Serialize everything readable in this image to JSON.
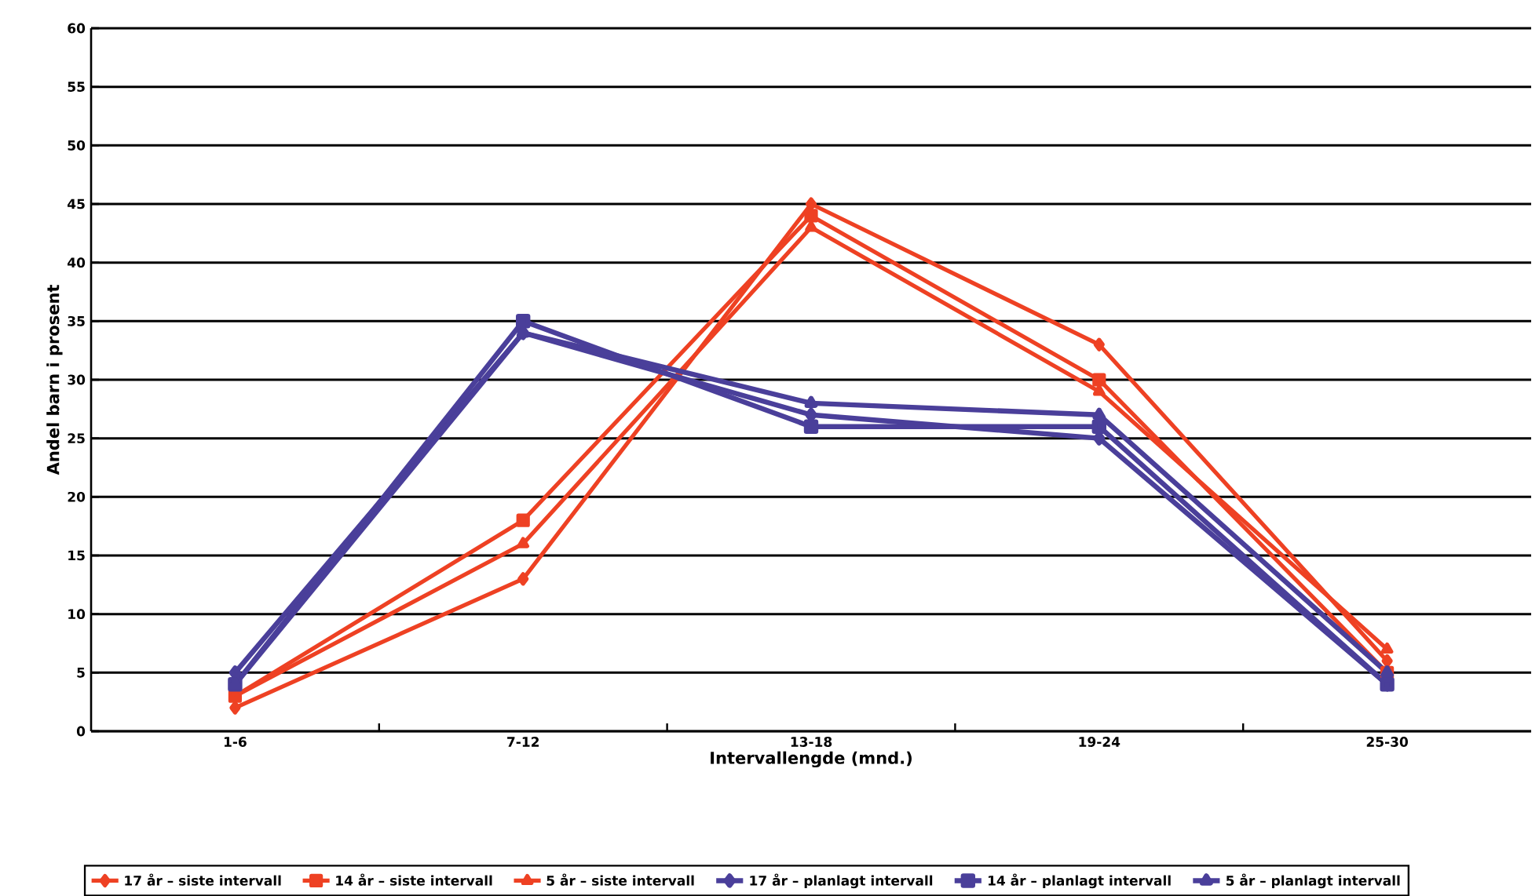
{
  "chart_data": {
    "type": "line",
    "xlabel": "Intervallengde (mnd.)",
    "ylabel": "Andel barn i prosent",
    "categories": [
      "1-6",
      "7-12",
      "13-18",
      "19-24",
      "25-30"
    ],
    "series": [
      {
        "name": "17 år – siste  intervall",
        "color": "#ee4123",
        "marker": "diamond",
        "values": [
          2,
          13,
          45,
          33,
          6
        ]
      },
      {
        "name": "14 år – siste  intervall",
        "color": "#ee4123",
        "marker": "square",
        "values": [
          3,
          18,
          44,
          30,
          5
        ]
      },
      {
        "name": "5 år – siste  intervall",
        "color": "#ee4123",
        "marker": "triangle",
        "values": [
          3,
          16,
          43,
          29,
          7
        ]
      },
      {
        "name": "17 år – planlagt  intervall",
        "color": "#4a3f9a",
        "marker": "diamond",
        "values": [
          5,
          34,
          27,
          25,
          4
        ]
      },
      {
        "name": "14 år – planlagt  intervall",
        "color": "#4a3f9a",
        "marker": "square",
        "values": [
          4,
          35,
          26,
          26,
          4
        ]
      },
      {
        "name": "5 år – planlagt  intervall",
        "color": "#4a3f9a",
        "marker": "triangle",
        "values": [
          4,
          34,
          28,
          27,
          5
        ]
      }
    ],
    "ylim": [
      0,
      60
    ],
    "yticks": [
      0,
      5,
      10,
      15,
      20,
      25,
      30,
      35,
      40,
      45,
      50,
      55,
      60
    ],
    "grid": "y",
    "legend": "bottom",
    "line_style": "solid"
  }
}
